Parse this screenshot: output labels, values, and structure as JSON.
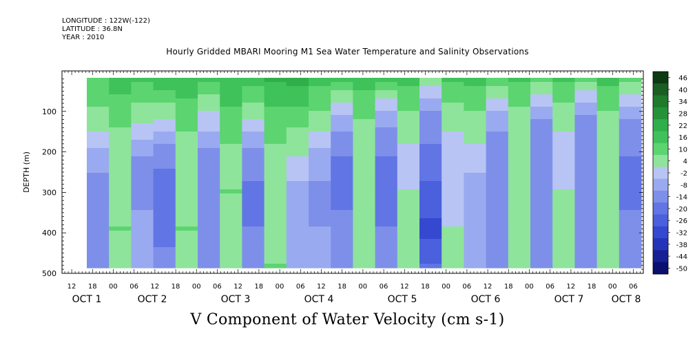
{
  "header": {
    "longitude": "LONGITUDE : 122W(-122)",
    "latitude": "LATITUDE : 36.8N",
    "year": "YEAR : 2010"
  },
  "chart_data": {
    "type": "heatmap",
    "title": "Hourly Gridded MBARI Mooring M1 Sea Water Temperature and Salinity Observations",
    "xlabel": "V Component of Water Velocity (cm s-1)",
    "ylabel": "DEPTH (m)",
    "ylim": [
      500,
      20
    ],
    "y_ticks": [
      100,
      200,
      300,
      400,
      500
    ],
    "x_hour_ticks": [
      "12",
      "18",
      "00",
      "06",
      "12",
      "18",
      "00",
      "06",
      "12",
      "18",
      "00",
      "06",
      "12",
      "18",
      "00",
      "06",
      "12",
      "18",
      "00",
      "06",
      "12",
      "18",
      "00",
      "06",
      "12",
      "18",
      "00",
      "06"
    ],
    "x_day_labels": [
      "OCT  1",
      "OCT  2",
      "OCT  3",
      "OCT  4",
      "OCT  5",
      "OCT  6",
      "OCT  7",
      "OCT  8"
    ],
    "colorbar": {
      "levels": [
        "46",
        "40",
        "34",
        "28",
        "22",
        "16",
        "10",
        "4",
        "-2",
        "-8",
        "-14",
        "-20",
        "-26",
        "-32",
        "-38",
        "-44",
        "-50"
      ],
      "colors": [
        "#0c3a12",
        "#1a5e22",
        "#1f7a2c",
        "#25923a",
        "#2fae4a",
        "#3fc25a",
        "#5cd470",
        "#8ee49a",
        "#b8c4f4",
        "#9aaaf0",
        "#7e8fea",
        "#6275e4",
        "#4a60dc",
        "#3448d0",
        "#2434b8",
        "#161f94",
        "#0a0f70"
      ]
    },
    "columns": [
      {
        "label": "OCT 1 18",
        "profile": [
          14,
          8,
          -4,
          -12,
          -14,
          -10
        ]
      },
      {
        "label": "OCT 2 00",
        "profile": [
          18,
          12,
          4,
          6,
          10,
          8
        ]
      },
      {
        "label": "OCT 2 06",
        "profile": [
          16,
          6,
          -8,
          -10,
          -6,
          -4
        ]
      },
      {
        "label": "OCT 2 12",
        "profile": [
          20,
          4,
          -12,
          -18,
          -16,
          -12
        ]
      },
      {
        "label": "OCT 2 18",
        "profile": [
          20,
          12,
          6,
          8,
          10,
          8
        ]
      },
      {
        "label": "OCT 3 00",
        "profile": [
          16,
          2,
          -10,
          -14,
          -12,
          -10
        ]
      },
      {
        "label": "OCT 3 06",
        "profile": [
          20,
          14,
          8,
          10,
          8,
          6
        ]
      },
      {
        "label": "OCT 3 12",
        "profile": [
          18,
          4,
          -10,
          -16,
          -14,
          -12
        ]
      },
      {
        "label": "OCT 3 18",
        "profile": [
          22,
          14,
          8,
          6,
          8,
          10
        ]
      },
      {
        "label": "OCT 4 00",
        "profile": [
          24,
          12,
          4,
          -4,
          -6,
          -4
        ]
      },
      {
        "label": "OCT 4 06",
        "profile": [
          18,
          8,
          -4,
          -10,
          -8,
          -6
        ]
      },
      {
        "label": "OCT 4 12",
        "profile": [
          16,
          -4,
          -14,
          -16,
          -12,
          -10
        ]
      },
      {
        "label": "OCT 4 18",
        "profile": [
          18,
          10,
          4,
          6,
          8,
          6
        ]
      },
      {
        "label": "OCT 5 00",
        "profile": [
          16,
          -6,
          -14,
          -18,
          -14,
          -12
        ]
      },
      {
        "label": "OCT 5 06",
        "profile": [
          18,
          8,
          2,
          4,
          6,
          4
        ]
      },
      {
        "label": "OCT 5 12",
        "profile": [
          6,
          -10,
          -16,
          -22,
          -28,
          -20
        ]
      },
      {
        "label": "OCT 5 18",
        "profile": [
          16,
          6,
          0,
          2,
          4,
          6
        ]
      },
      {
        "label": "OCT 6 00",
        "profile": [
          18,
          8,
          2,
          -6,
          -8,
          -6
        ]
      },
      {
        "label": "OCT 6 06",
        "profile": [
          14,
          -6,
          -12,
          -14,
          -12,
          -10
        ]
      },
      {
        "label": "OCT 6 12",
        "profile": [
          16,
          8,
          4,
          6,
          8,
          6
        ]
      },
      {
        "label": "OCT 6 18",
        "profile": [
          12,
          -8,
          -12,
          -10,
          -12,
          -10
        ]
      },
      {
        "label": "OCT 7 00",
        "profile": [
          16,
          6,
          0,
          4,
          6,
          4
        ]
      },
      {
        "label": "OCT 7 06",
        "profile": [
          10,
          -10,
          -14,
          -12,
          -14,
          -12
        ]
      },
      {
        "label": "OCT 7 12",
        "profile": [
          18,
          8,
          4,
          6,
          8,
          6
        ]
      },
      {
        "label": "OCT 8 00",
        "profile": [
          10,
          -8,
          -14,
          -16,
          -12,
          -10
        ]
      }
    ]
  }
}
